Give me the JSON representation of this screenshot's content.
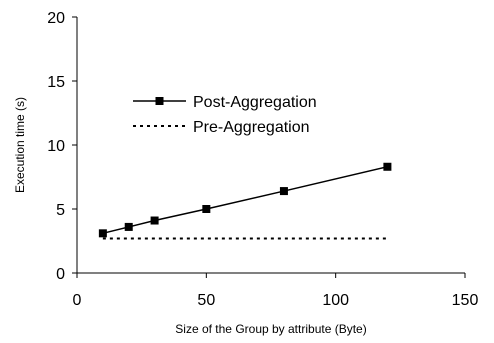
{
  "chart_data": {
    "type": "line",
    "xlabel": "Size of the Group by attribute (Byte)",
    "ylabel": "Execution time (s)",
    "xlim": [
      0,
      150
    ],
    "ylim": [
      0,
      20
    ],
    "xticks": [
      0,
      50,
      100,
      150
    ],
    "yticks": [
      0,
      5,
      10,
      15,
      20
    ],
    "grid": false,
    "legend_position": "top-left",
    "series": [
      {
        "name": "Post-Aggregation",
        "style": "solid",
        "marker": "square",
        "color": "#000000",
        "x": [
          10,
          20,
          30,
          50,
          80,
          120
        ],
        "y": [
          3.1,
          3.6,
          4.1,
          5.0,
          6.4,
          8.3
        ]
      },
      {
        "name": "Pre-Aggregation",
        "style": "dotted",
        "marker": "none",
        "color": "#000000",
        "x": [
          10,
          120
        ],
        "y": [
          2.7,
          2.7
        ]
      }
    ]
  }
}
